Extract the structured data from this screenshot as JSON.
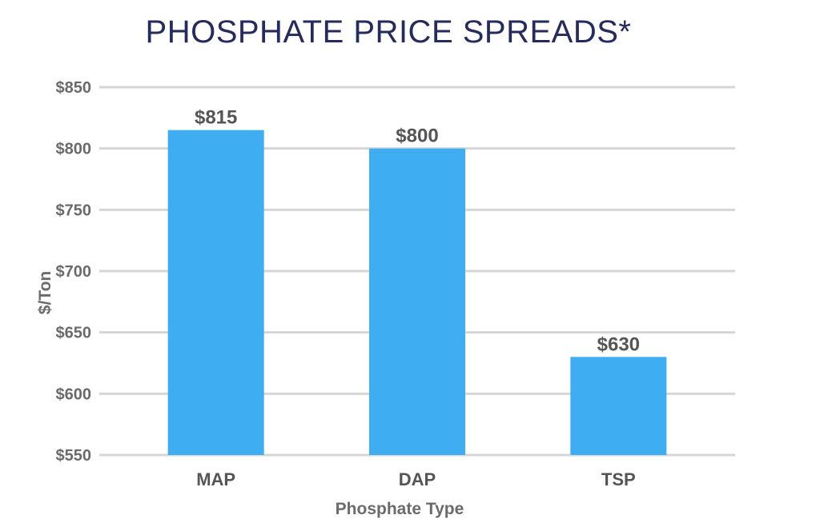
{
  "chart_data": {
    "type": "bar",
    "title": "PHOSPHATE PRICE SPREADS*",
    "xlabel": "Phosphate Type",
    "ylabel": "$/Ton",
    "categories": [
      "MAP",
      "DAP",
      "TSP"
    ],
    "values": [
      815,
      800,
      630
    ],
    "data_labels": [
      "$815",
      "$800",
      "$630"
    ],
    "ylim": [
      550,
      850
    ],
    "y_ticks": [
      550,
      600,
      650,
      700,
      750,
      800,
      850
    ],
    "y_tick_labels": [
      "$550",
      "$600",
      "$650",
      "$700",
      "$750",
      "$800",
      "$850"
    ],
    "grid": true,
    "legend": "none",
    "bar_color": "#3FADF2"
  }
}
